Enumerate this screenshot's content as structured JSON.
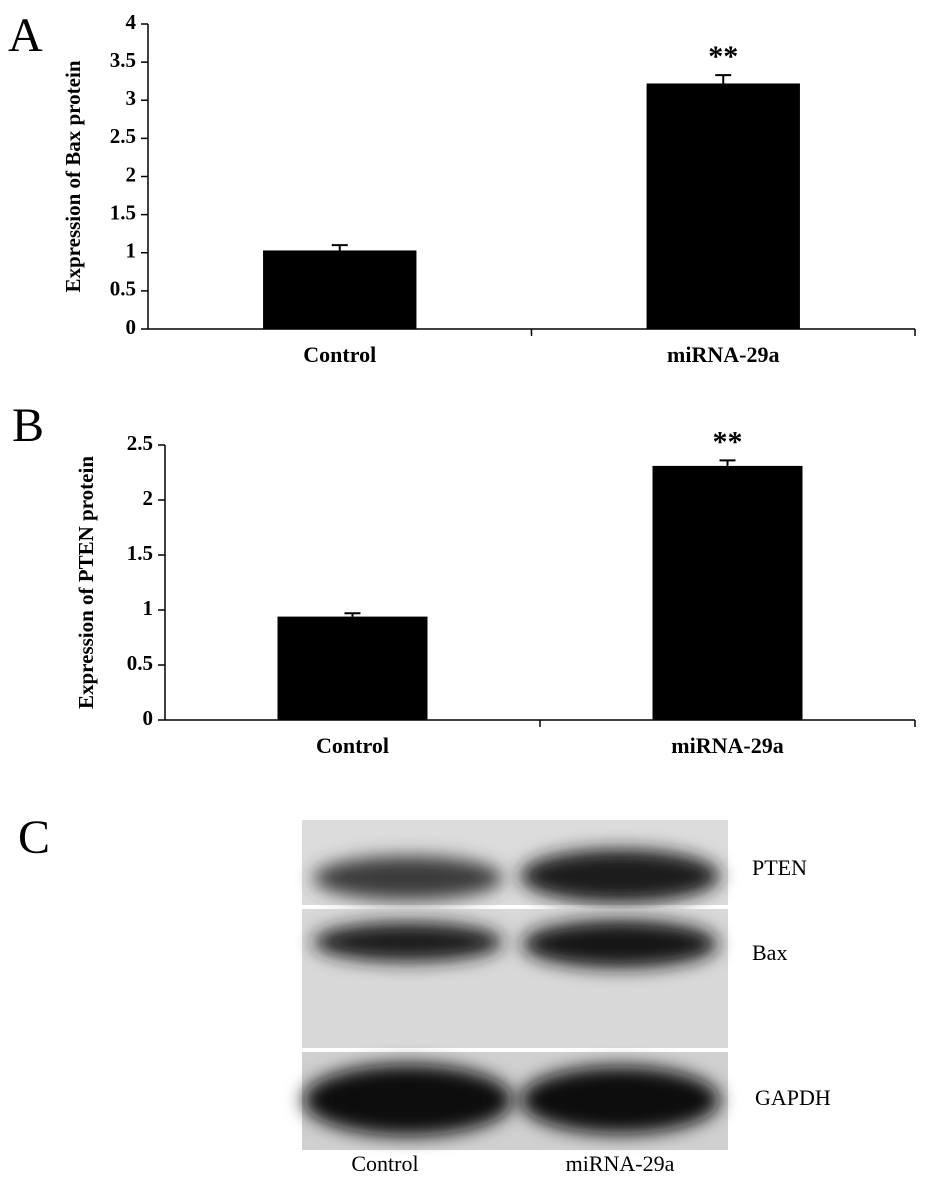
{
  "chart_data": [
    {
      "type": "bar",
      "panel": "A",
      "ylabel": "Expression of Bax protein",
      "categories": [
        "Control",
        "miRNA-29a"
      ],
      "values": [
        1.03,
        3.22
      ],
      "errors": [
        0.07,
        0.11
      ],
      "significance": [
        null,
        "**"
      ],
      "color": "#000000",
      "ylim": [
        0,
        4
      ],
      "yticks": [
        0,
        0.5,
        1,
        1.5,
        2,
        2.5,
        3,
        3.5,
        4
      ]
    },
    {
      "type": "bar",
      "panel": "B",
      "ylabel": "Expression of PTEN protein",
      "categories": [
        "Control",
        "miRNA-29a"
      ],
      "values": [
        0.94,
        2.31
      ],
      "errors": [
        0.03,
        0.05
      ],
      "significance": [
        null,
        "**"
      ],
      "color": "#000000",
      "ylim": [
        0,
        2.5
      ],
      "yticks": [
        0,
        0.5,
        1,
        1.5,
        2,
        2.5
      ]
    }
  ],
  "blot": {
    "panel": "C",
    "proteins": [
      "PTEN",
      "Bax",
      "GAPDH"
    ],
    "lanes": [
      "Control",
      "miRNA-29a"
    ]
  }
}
